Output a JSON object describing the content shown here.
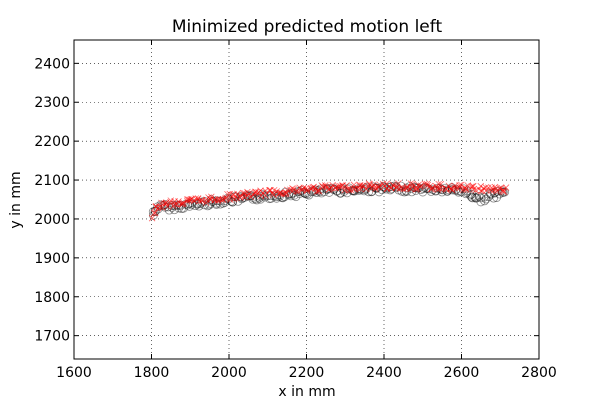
{
  "chart_data": {
    "type": "scatter",
    "title": "Minimized predicted motion left",
    "xlabel": "x in mm",
    "ylabel": "y in mm",
    "xlim": [
      1600,
      2800
    ],
    "ylim": [
      1640,
      2460
    ],
    "xticks": [
      1600,
      1800,
      2000,
      2200,
      2400,
      2600,
      2800
    ],
    "yticks": [
      1700,
      1800,
      1900,
      2000,
      2100,
      2200,
      2300,
      2400
    ],
    "grid": true,
    "series": [
      {
        "marker": "x",
        "color": "#ff0000",
        "x": [
          1800,
          1810,
          1820,
          1850,
          1900,
          1950,
          2000,
          2050,
          2100,
          2150,
          2200,
          2250,
          2300,
          2350,
          2400,
          2450,
          2500,
          2550,
          2600,
          2650,
          2700,
          2715
        ],
        "y": [
          2005,
          2025,
          2035,
          2040,
          2045,
          2050,
          2057,
          2062,
          2067,
          2072,
          2076,
          2079,
          2081,
          2083,
          2084,
          2084,
          2083,
          2082,
          2080,
          2078,
          2075,
          2075
        ]
      },
      {
        "marker": "o",
        "color": "#000000",
        "x": [
          1805,
          1810,
          1815,
          1850,
          1900,
          1950,
          2000,
          2050,
          2100,
          2150,
          2200,
          2250,
          2300,
          2350,
          2400,
          2450,
          2500,
          2550,
          2600,
          2650,
          2700,
          2715
        ],
        "y": [
          2010,
          2020,
          2030,
          2030,
          2035,
          2042,
          2048,
          2053,
          2058,
          2063,
          2067,
          2071,
          2074,
          2076,
          2077,
          2077,
          2076,
          2075,
          2073,
          2050,
          2065,
          2070
        ]
      }
    ]
  }
}
